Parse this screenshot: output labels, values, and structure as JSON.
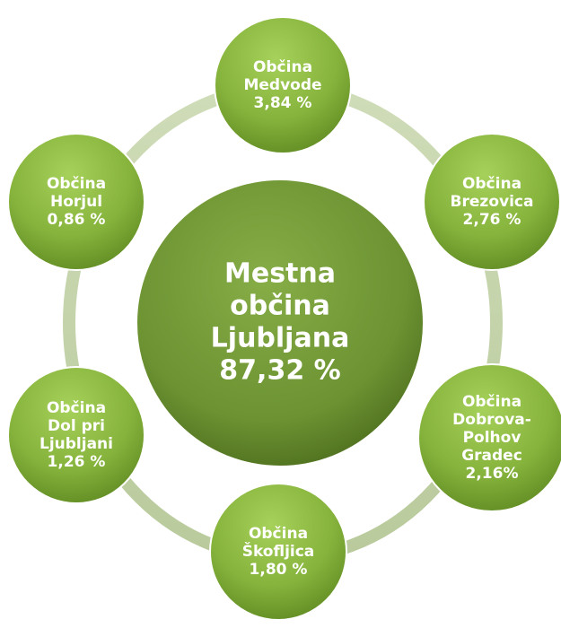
{
  "center": {
    "lines": [
      "Mestna",
      "občina",
      "Ljubljana",
      "87,32 %"
    ]
  },
  "nodes": [
    {
      "lines": [
        "Občina",
        "Medvode",
        "3,84 %"
      ]
    },
    {
      "lines": [
        "Občina",
        "Brezovica",
        "2,76 %"
      ]
    },
    {
      "lines": [
        "Občina",
        "Dobrova-",
        "Polhov",
        "Gradec",
        "2,16%"
      ]
    },
    {
      "lines": [
        "Občina",
        "Škofljica",
        "1,80 %"
      ]
    },
    {
      "lines": [
        "Občina",
        "Dol pri",
        "Ljubljani",
        "1,26 %"
      ]
    },
    {
      "lines": [
        "Občina",
        "Horjul",
        "0,86 %"
      ]
    }
  ]
}
